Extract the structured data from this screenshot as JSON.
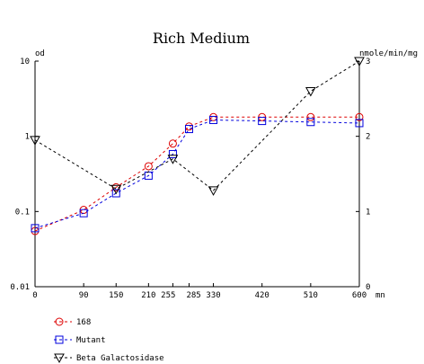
{
  "chart_data": {
    "type": "line",
    "title": "Rich Medium",
    "ylabel": "od",
    "y2label": "nmole/min/mg",
    "x_unit": "mn",
    "x": [
      0,
      90,
      150,
      210,
      255,
      285,
      330,
      420,
      510,
      600
    ],
    "xlim": [
      0,
      600
    ],
    "x_tick_values": [
      0,
      90,
      150,
      210,
      255,
      285,
      330,
      420,
      510,
      600
    ],
    "x_tick_labels": [
      "0",
      "90",
      "150",
      "210",
      "255",
      "285",
      "330",
      "420",
      "510",
      "600"
    ],
    "y_scale": "log",
    "ylim": [
      0.01,
      10
    ],
    "y_tick_values": [
      10,
      1,
      0.1,
      0.01
    ],
    "y_tick_labels": [
      "10",
      "1",
      "0.1",
      "0.01"
    ],
    "y2_scale": "linear",
    "y2lim": [
      0,
      3
    ],
    "y2_tick_values": [
      3,
      2,
      1,
      0
    ],
    "y2_tick_labels": [
      "3",
      "2",
      "1",
      "0"
    ],
    "grid": false,
    "legend_position": "bottom-left",
    "series": [
      {
        "name": "168",
        "axis": "left",
        "color": "#dd0000",
        "marker": "circle",
        "x": [
          0,
          90,
          150,
          210,
          255,
          285,
          330,
          420,
          510,
          600
        ],
        "values": [
          0.055,
          0.105,
          0.21,
          0.4,
          0.8,
          1.35,
          1.8,
          1.8,
          1.8,
          1.8
        ]
      },
      {
        "name": "Mutant",
        "axis": "left",
        "color": "#0000dd",
        "marker": "square",
        "x": [
          0,
          90,
          150,
          210,
          255,
          285,
          330,
          420,
          510,
          600
        ],
        "values": [
          0.06,
          0.095,
          0.175,
          0.3,
          0.58,
          1.25,
          1.65,
          1.6,
          1.55,
          1.5
        ]
      },
      {
        "name": "Beta Galactosidase",
        "axis": "right",
        "color": "#000000",
        "marker": "triangle-down",
        "x": [
          0,
          150,
          255,
          330,
          510,
          600
        ],
        "values": [
          1.95,
          1.3,
          1.7,
          1.28,
          2.6,
          3.0
        ]
      }
    ]
  }
}
